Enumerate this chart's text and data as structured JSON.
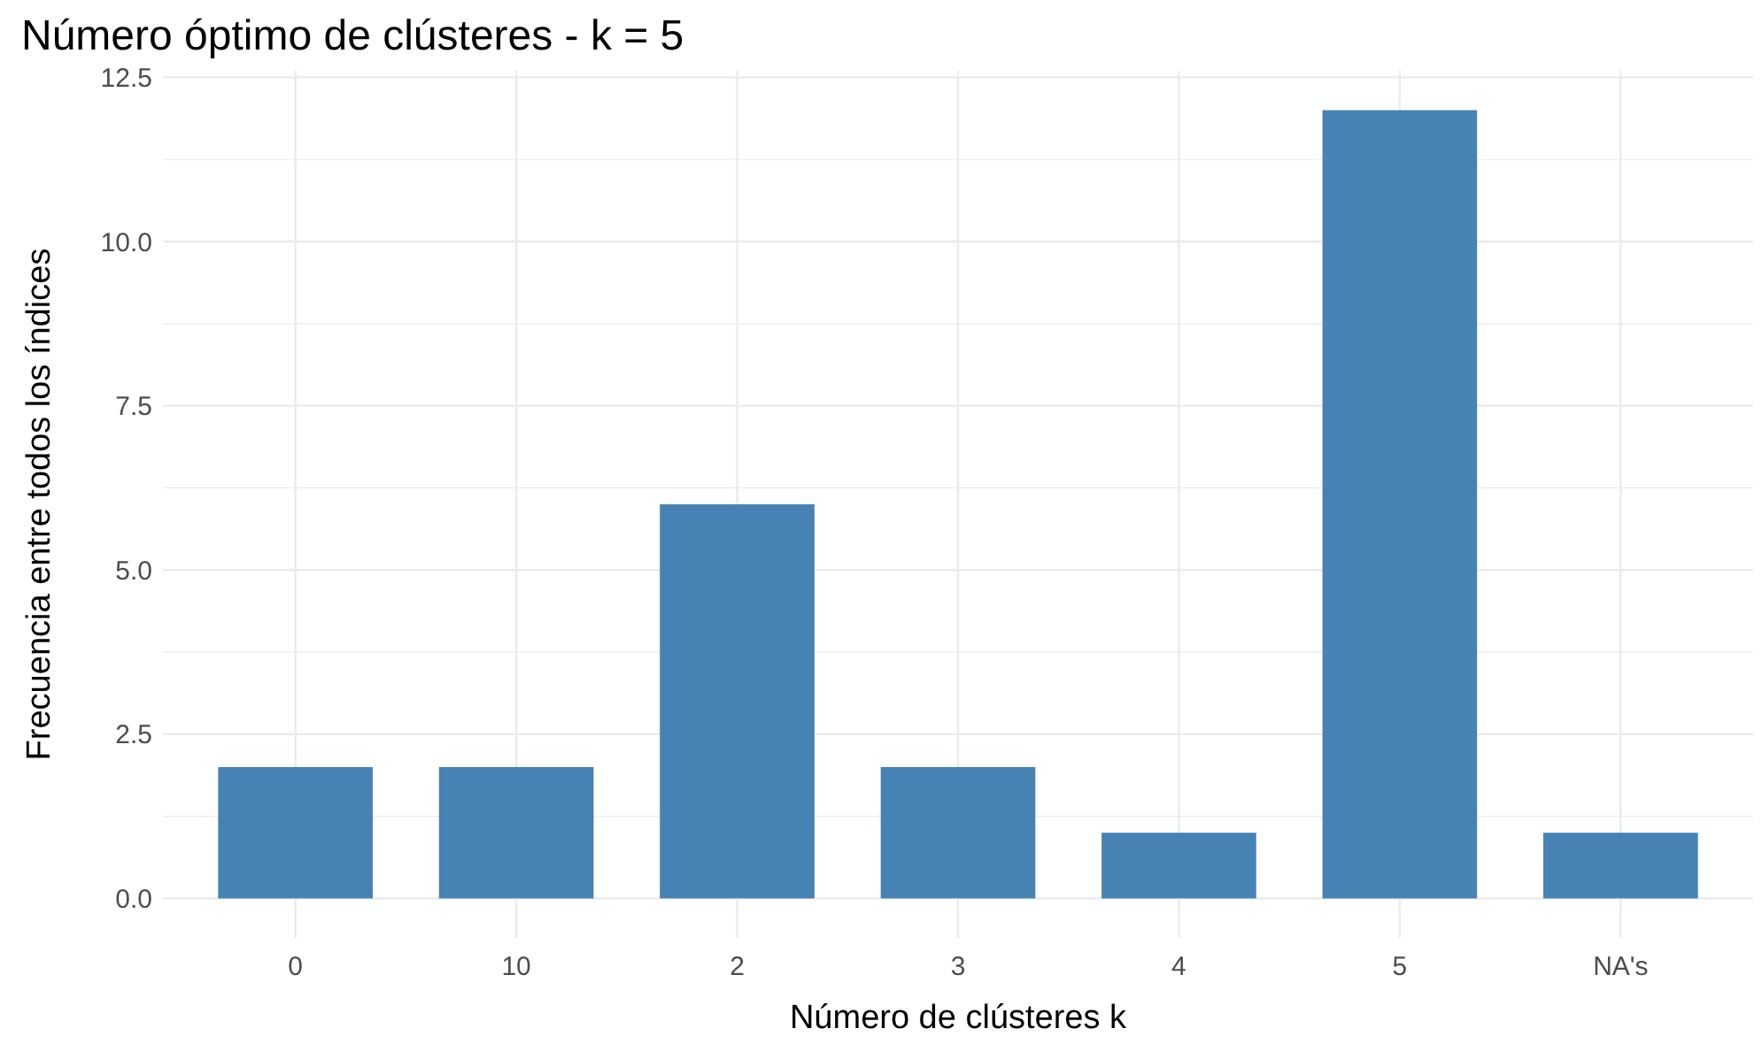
{
  "chart_data": {
    "type": "bar",
    "title": "Número óptimo de clústeres - k = 5",
    "xlabel": "Número de clústeres k",
    "ylabel": "Frecuencia entre todos los índices",
    "categories": [
      "0",
      "10",
      "2",
      "3",
      "4",
      "5",
      "NA's"
    ],
    "values": [
      2,
      2,
      6,
      2,
      1,
      12,
      1
    ],
    "color": "#4682b4",
    "ylim": [
      -0.6,
      12.6
    ],
    "yticks": [
      {
        "value": 0,
        "label": "0.0"
      },
      {
        "value": 2.5,
        "label": "2.5"
      },
      {
        "value": 5,
        "label": "5.0"
      },
      {
        "value": 7.5,
        "label": "7.5"
      },
      {
        "value": 10,
        "label": "10.0"
      },
      {
        "value": 12.5,
        "label": "12.5"
      }
    ],
    "grid": true
  }
}
